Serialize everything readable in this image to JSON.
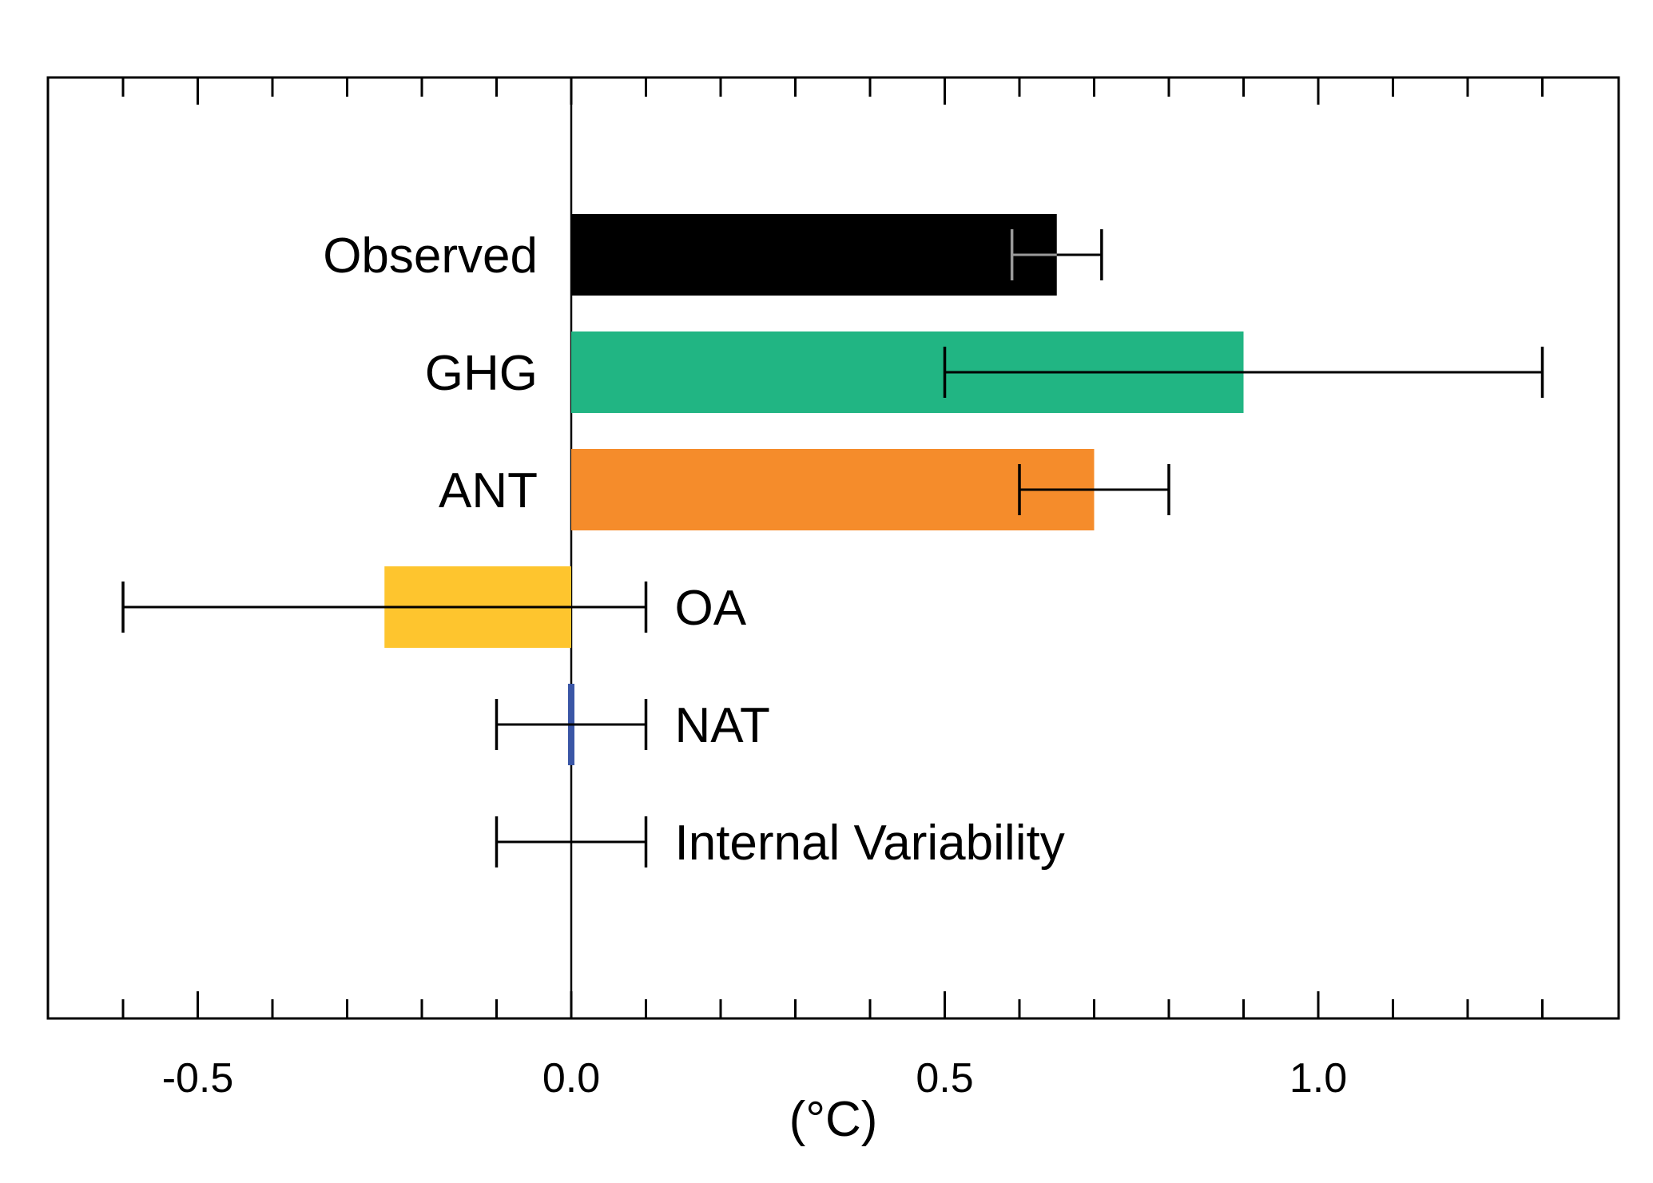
{
  "chart_data": {
    "type": "bar",
    "orientation": "horizontal",
    "xlabel": "(°C)",
    "xlim": [
      -0.7,
      1.4
    ],
    "x_ticks_major": [
      -0.5,
      0.0,
      0.5,
      1.0
    ],
    "x_tick_labels": [
      "-0.5",
      "0.0",
      "0.5",
      "1.0"
    ],
    "x_ticks_minor_step": 0.1,
    "ticks_on_top": true,
    "zero_line": true,
    "grid": false,
    "legend": "none",
    "categories": [
      "Observed",
      "GHG",
      "ANT",
      "OA",
      "NAT",
      "Internal Variability"
    ],
    "series": [
      {
        "values": [
          0.65,
          0.9,
          0.7,
          -0.25,
          0.0,
          null
        ],
        "error_low": [
          0.59,
          0.5,
          0.6,
          -0.6,
          -0.1,
          -0.1
        ],
        "error_high": [
          0.71,
          1.3,
          0.8,
          0.1,
          0.1,
          0.1
        ],
        "colors": [
          "#000000",
          "#21b583",
          "#f58c2b",
          "#fec52e",
          "#3a56a6",
          null
        ]
      }
    ],
    "label_side": [
      "left",
      "left",
      "left",
      "right",
      "right",
      "right"
    ]
  }
}
